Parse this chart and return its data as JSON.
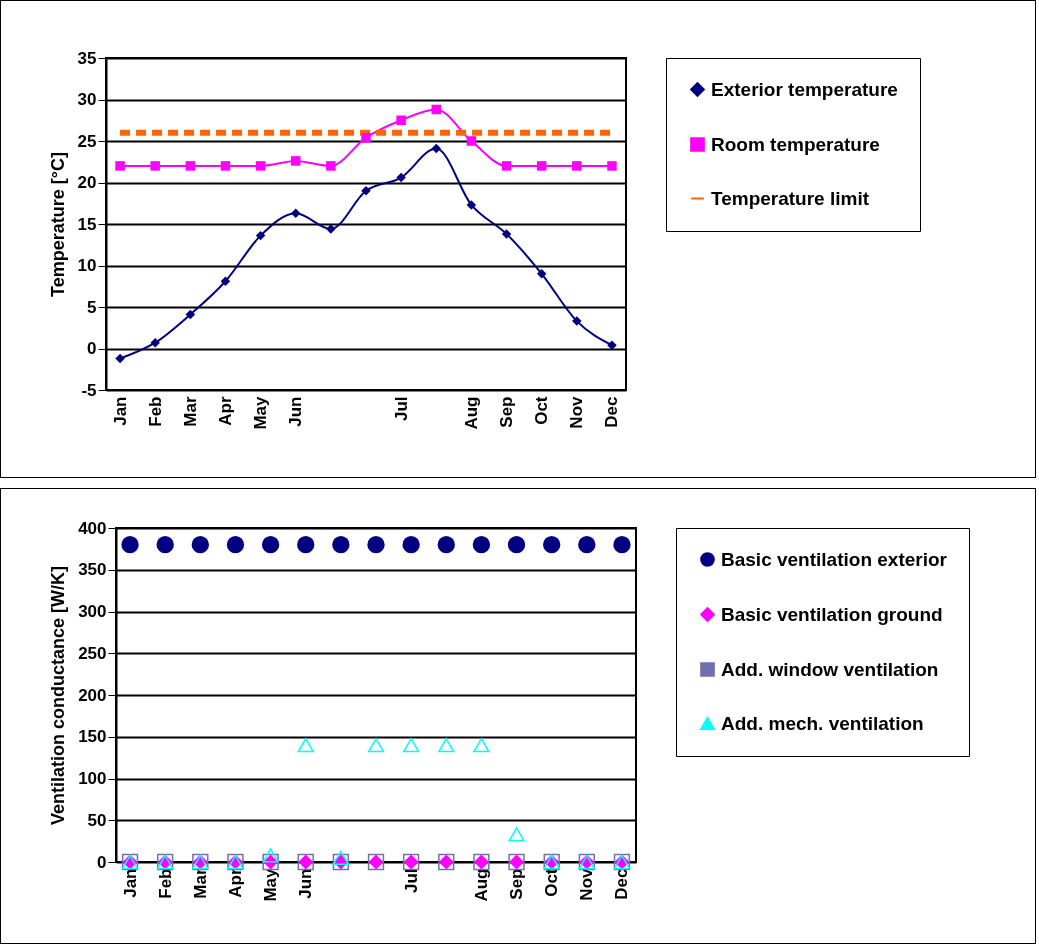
{
  "chart_data": [
    {
      "type": "line",
      "ylabel": "Temperature [°C]",
      "categories": [
        "Jan",
        "Feb",
        "Mar",
        "Apr",
        "May",
        "Jun",
        null,
        null,
        "Jul",
        null,
        "Aug",
        "Sep",
        "Oct",
        "Nov",
        "Dec"
      ],
      "ylim": [
        -5,
        35
      ],
      "yticks": [
        -5,
        0,
        5,
        10,
        15,
        20,
        25,
        30,
        35
      ],
      "grid": "y",
      "legend": "right",
      "series": [
        {
          "name": "Exterior temperature",
          "color": "#000080",
          "marker": "diamond",
          "line_style": "solid",
          "values": [
            -1.2,
            0.7,
            4.1,
            8.1,
            13.6,
            16.3,
            14.4,
            19.0,
            20.6,
            24.1,
            17.3,
            13.8,
            9.0,
            3.3,
            0.4
          ]
        },
        {
          "name": "Room temperature",
          "color": "#ff00ff",
          "marker": "square",
          "line_style": "solid",
          "values": [
            22,
            22,
            22,
            22,
            22,
            22.6,
            22,
            25.4,
            27.5,
            28.8,
            25,
            22,
            22,
            22,
            22
          ]
        },
        {
          "name": "Temperature limit",
          "color": "#ff6600",
          "marker": "none",
          "line_style": "dashed",
          "values": [
            26,
            26,
            26,
            26,
            26,
            26,
            26,
            26,
            26,
            26,
            26,
            26,
            26,
            26,
            26
          ]
        }
      ]
    },
    {
      "type": "scatter",
      "ylabel": "Ventilation conductance [W/K]",
      "categories": [
        "Jan",
        "Feb",
        "Mar",
        "Apr",
        "May",
        "Jun",
        null,
        null,
        "Jul",
        null,
        "Aug",
        "Sep",
        "Oct",
        "Nov",
        "Dec"
      ],
      "ylim": [
        0,
        400
      ],
      "yticks": [
        0,
        50,
        100,
        150,
        200,
        250,
        300,
        350,
        400
      ],
      "grid": "y",
      "legend": "right",
      "series": [
        {
          "name": "Basic ventilation exterior",
          "color": "#000080",
          "marker": "circle",
          "values": [
            380,
            380,
            380,
            380,
            380,
            380,
            380,
            380,
            380,
            380,
            380,
            380,
            380,
            380,
            380
          ]
        },
        {
          "name": "Basic ventilation ground",
          "color": "#ff00ff",
          "marker": "diamond",
          "values": [
            0,
            0,
            0,
            0,
            0,
            0,
            0,
            0,
            0,
            0,
            0,
            0,
            0,
            0,
            0
          ]
        },
        {
          "name": "Add. window ventilation",
          "color": "#7070b0",
          "marker": "square",
          "values": [
            0,
            0,
            0,
            0,
            0,
            0,
            0,
            0,
            0,
            0,
            0,
            0,
            0,
            0,
            0
          ]
        },
        {
          "name": "Add. mech. ventilation",
          "color": "#00ffff",
          "marker": "triangle",
          "values": [
            0,
            0,
            0,
            0,
            8,
            140,
            5,
            140,
            140,
            140,
            140,
            33,
            0,
            0,
            0
          ]
        }
      ]
    }
  ]
}
